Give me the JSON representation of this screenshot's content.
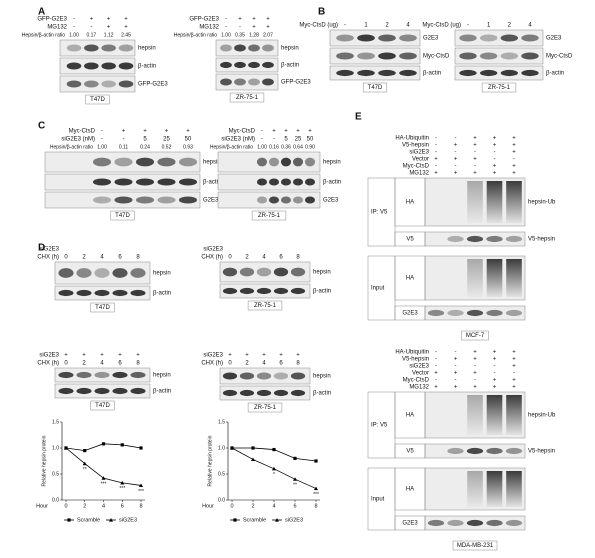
{
  "panel_labels": [
    "A",
    "B",
    "C",
    "D",
    "E"
  ],
  "blots": [
    {
      "conditions": [
        {
          "name": "GFP-G2E3",
          "marks": [
            "-",
            "+",
            "+",
            "+"
          ]
        },
        {
          "name": "MG132",
          "marks": [
            "-",
            "-",
            "+",
            "+"
          ]
        }
      ],
      "ratio": {
        "name": "Hepsin/β-actin ratio",
        "values": [
          "1.00",
          "0.17",
          "1.12",
          "2.45"
        ]
      },
      "bands": [
        "hepsin",
        "β-actin",
        "GFP-G2E3"
      ],
      "cell_line": "T47D"
    },
    {
      "conditions": [
        {
          "name": "GFP-G2E3",
          "marks": [
            "-",
            "+",
            "+",
            "+"
          ]
        },
        {
          "name": "MG132",
          "marks": [
            "-",
            "-",
            "+",
            "+"
          ]
        }
      ],
      "ratio": {
        "name": "Hepsin/β-actin ratio",
        "values": [
          "1.00",
          "0.35",
          "1.28",
          "2.07"
        ]
      },
      "bands": [
        "hepsin",
        "β-actin",
        "GFP-G2E3"
      ],
      "cell_line": "ZR-75-1"
    },
    {
      "conditions": [
        {
          "name": "Myc-CtsD (ug)",
          "marks": [
            "-",
            "1",
            "2",
            "4"
          ]
        }
      ],
      "bands": [
        "G2E3",
        "Myc-CtsD",
        "β-actin"
      ],
      "cell_line": "T47D"
    },
    {
      "conditions": [
        {
          "name": "Myc-CtsD (ug)",
          "marks": [
            "-",
            "1",
            "2",
            "4"
          ]
        }
      ],
      "bands": [
        "G2E3",
        "Myc-CtsD",
        "β-actin"
      ],
      "cell_line": "ZR-75-1"
    },
    {
      "conditions": [
        {
          "name": "Myc-CtsD",
          "marks": [
            "-",
            "+",
            "+",
            "+",
            "+"
          ]
        },
        {
          "name": "siG2E3 (nM)",
          "marks": [
            "-",
            "-",
            "5",
            "25",
            "50"
          ]
        }
      ],
      "ratio": {
        "name": "Hepsin/β-actin ratio",
        "values": [
          "1.00",
          "0.11",
          "0.24",
          "0.52",
          "0.93"
        ]
      },
      "bands": [
        "hepsin",
        "β-actin",
        "G2E3"
      ],
      "cell_line": "T47D"
    },
    {
      "conditions": [
        {
          "name": "Myc-CtsD",
          "marks": [
            "-",
            "+",
            "+",
            "+",
            "+"
          ]
        },
        {
          "name": "siG2E3 (nM)",
          "marks": [
            "-",
            "-",
            "5",
            "25",
            "50"
          ]
        }
      ],
      "ratio": {
        "name": "Hepsin/β-actin ratio",
        "values": [
          "1.00",
          "0.16",
          "0.36",
          "0.64",
          "0.90"
        ]
      },
      "bands": [
        "hepsin",
        "β-actin",
        "G2E3"
      ],
      "cell_line": "ZR-75-1"
    },
    {
      "conditions": [
        {
          "name": "siG2E3"
        },
        {
          "name": "CHX (h)",
          "marks": [
            "0",
            "2",
            "4",
            "6",
            "8"
          ]
        }
      ],
      "bands": [
        "hepsin",
        "β-actin"
      ],
      "cell_line": "T47D"
    },
    {
      "conditions": [
        {
          "name": "siG2E3"
        },
        {
          "name": "CHX (h)",
          "marks": [
            "0",
            "2",
            "4",
            "6",
            "8"
          ]
        }
      ],
      "bands": [
        "hepsin",
        "β-actin"
      ],
      "cell_line": "ZR-75-1"
    },
    {
      "conditions": [
        {
          "name": "siG2E3",
          "marks": [
            "+",
            "+",
            "+",
            "+",
            "+"
          ]
        },
        {
          "name": "CHX (h)",
          "marks": [
            "0",
            "2",
            "4",
            "6",
            "8"
          ]
        }
      ],
      "bands": [
        "hepsin",
        "β-actin"
      ],
      "cell_line": "T47D"
    },
    {
      "conditions": [
        {
          "name": "siG2E3",
          "marks": [
            "+",
            "+",
            "+",
            "+",
            "+"
          ]
        },
        {
          "name": "CHX (h)",
          "marks": [
            "0",
            "2",
            "4",
            "6",
            "8"
          ]
        }
      ],
      "bands": [
        "hepsin",
        "β-actin"
      ],
      "cell_line": "ZR-75-1"
    },
    {
      "conditions": [
        {
          "name": "HA-Ubiquitin",
          "marks": [
            "-",
            "-",
            "+",
            "+",
            "+"
          ]
        },
        {
          "name": "V5-hepsin",
          "marks": [
            "-",
            "+",
            "+",
            "+",
            "+"
          ]
        },
        {
          "name": "siG2E3",
          "marks": [
            "-",
            "-",
            "-",
            "-",
            "+"
          ]
        },
        {
          "name": "Vector",
          "marks": [
            "+",
            "+",
            "+",
            "-",
            "-"
          ]
        },
        {
          "name": "Myc-CtsD",
          "marks": [
            "-",
            "-",
            "-",
            "+",
            "+"
          ]
        },
        {
          "name": "MG132",
          "marks": [
            "+",
            "+",
            "+",
            "+",
            "+"
          ]
        }
      ],
      "sections": [
        {
          "group": "IP: V5",
          "rows": [
            {
              "lane_label": "HA",
              "band": "hepsin-Ub"
            },
            {
              "lane_label": "V5",
              "band": "V5-hepsin"
            }
          ]
        },
        {
          "group": "Input",
          "rows": [
            {
              "lane_label": "HA"
            },
            {
              "lane_label": "G2E3"
            }
          ]
        }
      ],
      "cell_line": "MCF-7"
    },
    {
      "conditions": [
        {
          "name": "HA-Ubiquitin",
          "marks": [
            "-",
            "-",
            "+",
            "+",
            "+"
          ]
        },
        {
          "name": "V5-hepsin",
          "marks": [
            "-",
            "+",
            "+",
            "+",
            "+"
          ]
        },
        {
          "name": "siG2E3",
          "marks": [
            "-",
            "-",
            "-",
            "-",
            "+"
          ]
        },
        {
          "name": "Vector",
          "marks": [
            "+",
            "+",
            "+",
            "-",
            "-"
          ]
        },
        {
          "name": "Myc-CtsD",
          "marks": [
            "-",
            "-",
            "-",
            "+",
            "+"
          ]
        },
        {
          "name": "MG132",
          "marks": [
            "+",
            "+",
            "+",
            "+",
            "+"
          ]
        }
      ],
      "sections": [
        {
          "group": "IP: V5",
          "rows": [
            {
              "lane_label": "HA",
              "band": "hepsin-Ub"
            },
            {
              "lane_label": "V5",
              "band": "V5-hepsin"
            }
          ]
        },
        {
          "group": "Input",
          "rows": [
            {
              "lane_label": "HA"
            },
            {
              "lane_label": "G2E3"
            }
          ]
        }
      ],
      "cell_line": "MDA-MB-231"
    }
  ],
  "chart_data": [
    {
      "type": "line",
      "xlabel": "Hour",
      "ylabel": "Relative hepsin protein",
      "x": [
        0,
        2,
        4,
        6,
        8
      ],
      "xlim": [
        0,
        8
      ],
      "xticks": [
        0,
        2,
        4,
        6,
        8
      ],
      "ylim": [
        0,
        1.5
      ],
      "yticks": [
        {
          "value": 0,
          "label": "0.0"
        },
        {
          "value": 0.5,
          "label": "0.5"
        },
        {
          "value": 1,
          "label": "1.0"
        },
        {
          "value": 1.5,
          "label": "1.5"
        }
      ],
      "series": [
        {
          "name": "Scramble",
          "color": "#000000",
          "values": [
            1.0,
            0.95,
            1.08,
            1.06,
            1.0
          ]
        },
        {
          "name": "siG2E3",
          "color": "#000000",
          "values": [
            1.0,
            0.7,
            0.42,
            0.33,
            0.28
          ]
        }
      ],
      "annotations": [
        {
          "x": 2,
          "text": "**"
        },
        {
          "x": 4,
          "text": "***"
        },
        {
          "x": 6,
          "text": "***"
        },
        {
          "x": 8,
          "text": "***"
        }
      ]
    },
    {
      "type": "line",
      "xlabel": "Hour",
      "ylabel": "Relative hepsin protein",
      "x": [
        0,
        2,
        4,
        6,
        8
      ],
      "xlim": [
        0,
        8
      ],
      "xticks": [
        0,
        2,
        4,
        6,
        8
      ],
      "ylim": [
        0,
        1.5
      ],
      "yticks": [
        {
          "value": 0,
          "label": "0.0"
        },
        {
          "value": 0.5,
          "label": "0.5"
        },
        {
          "value": 1,
          "label": "1.0"
        },
        {
          "value": 1.5,
          "label": "1.5"
        }
      ],
      "series": [
        {
          "name": "Scramble",
          "color": "#000000",
          "values": [
            1.0,
            1.0,
            0.97,
            0.8,
            0.75
          ]
        },
        {
          "name": "siG2E3",
          "color": "#000000",
          "values": [
            1.0,
            0.78,
            0.6,
            0.4,
            0.22
          ]
        }
      ],
      "annotations": [
        {
          "x": 4,
          "text": "*"
        },
        {
          "x": 6,
          "text": "**"
        },
        {
          "x": 8,
          "text": "***"
        }
      ]
    }
  ]
}
